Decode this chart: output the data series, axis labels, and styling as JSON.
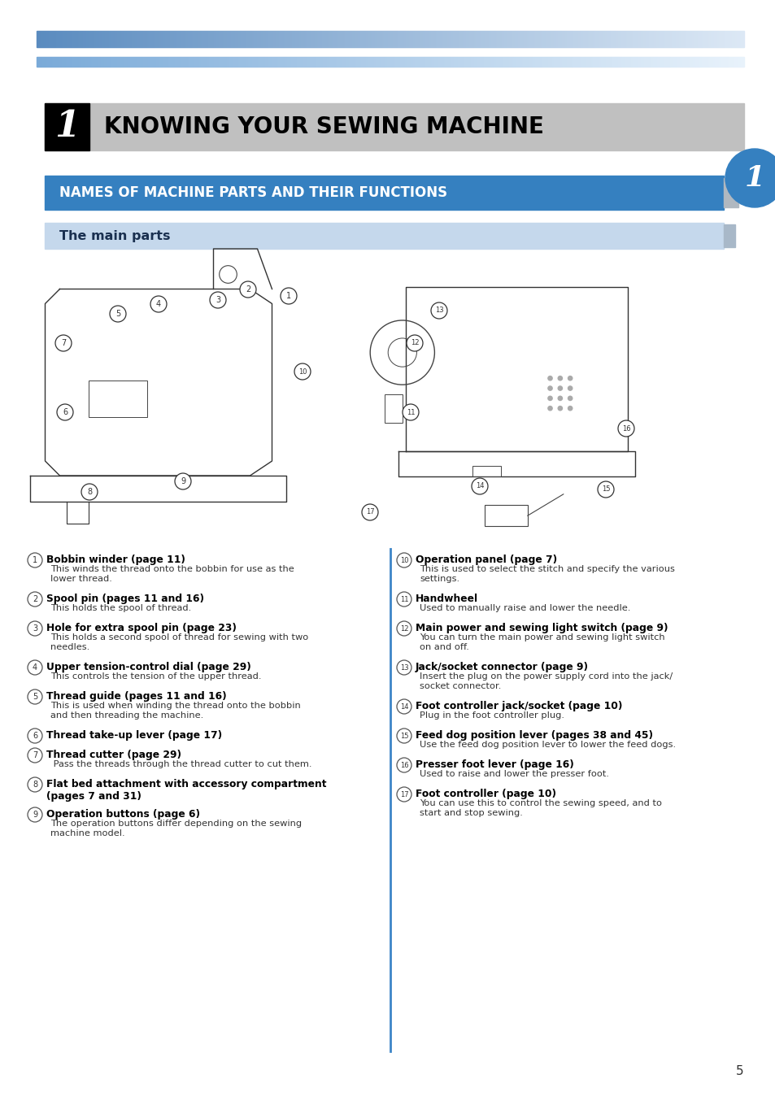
{
  "page_bg": "#ffffff",
  "top_stripe1_color_left": "#5a8bbf",
  "top_stripe1_color_right": "#dce8f5",
  "top_stripe2_color_left": "#7aaad8",
  "top_stripe2_color_right": "#e8f2fb",
  "chapter_box_color": "#c0c0c0",
  "chapter_number": "1",
  "chapter_title": "KNOWING YOUR SEWING MACHINE",
  "section_bar_color": "#3580c0",
  "section_title": "NAMES OF MACHINE PARTS AND THEIR FUNCTIONS",
  "subsection_bar_color": "#c5d8ec",
  "subsection_title": "The main parts",
  "side_circle_color": "#3580c0",
  "side_circle_number": "1",
  "divider_color": "#3d85c8",
  "page_number": "5",
  "left_items": [
    {
      "num": "1",
      "bold": "Bobbin winder (page 11)",
      "text": "This winds the thread onto the bobbin for use as the\nlower thread."
    },
    {
      "num": "2",
      "bold": "Spool pin (pages 11 and 16)",
      "text": "This holds the spool of thread."
    },
    {
      "num": "3",
      "bold": "Hole for extra spool pin (page 23)",
      "text": "This holds a second spool of thread for sewing with two\nneedles."
    },
    {
      "num": "4",
      "bold": "Upper tension-control dial (page 29)",
      "text": "This controls the tension of the upper thread."
    },
    {
      "num": "5",
      "bold": "Thread guide (pages 11 and 16)",
      "text": "This is used when winding the thread onto the bobbin\nand then threading the machine."
    },
    {
      "num": "6",
      "bold": "Thread take-up lever (page 17)",
      "text": ""
    },
    {
      "num": "7",
      "bold": "Thread cutter (page 29)",
      "text": " Pass the threads through the thread cutter to cut them."
    },
    {
      "num": "8",
      "bold": "Flat bed attachment with accessory compartment\n(pages 7 and 31)",
      "text": ""
    },
    {
      "num": "9",
      "bold": "Operation buttons (page 6)",
      "text": "The operation buttons differ depending on the sewing\nmachine model."
    }
  ],
  "right_items": [
    {
      "num": "10",
      "bold": "Operation panel (page 7)",
      "text": "This is used to select the stitch and specify the various\nsettings."
    },
    {
      "num": "11",
      "bold": "Handwheel",
      "text": "Used to manually raise and lower the needle."
    },
    {
      "num": "12",
      "bold": "Main power and sewing light switch (page 9)",
      "text": "You can turn the main power and sewing light switch\non and off."
    },
    {
      "num": "13",
      "bold": "Jack/socket connector (page 9)",
      "text": "Insert the plug on the power supply cord into the jack/\nsocket connector."
    },
    {
      "num": "14",
      "bold": "Foot controller jack/socket (page 10)",
      "text": "Plug in the foot controller plug."
    },
    {
      "num": "15",
      "bold": "Feed dog position lever (pages 38 and 45)",
      "text": "Use the feed dog position lever to lower the feed dogs."
    },
    {
      "num": "16",
      "bold": "Presser foot lever (page 16)",
      "text": "Used to raise and lower the presser foot."
    },
    {
      "num": "17",
      "bold": "Foot controller (page 10)",
      "text": "You can use this to control the sewing speed, and to\nstart and stop sewing."
    }
  ]
}
